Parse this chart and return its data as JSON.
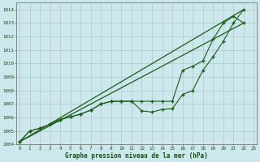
{
  "title": "Graphe pression niveau de la mer (hPa)",
  "ylim": [
    1004,
    1014.5
  ],
  "yticks": [
    1004,
    1005,
    1006,
    1007,
    1008,
    1009,
    1010,
    1011,
    1012,
    1013,
    1014
  ],
  "bg_color": "#cce8ec",
  "grid_color": "#b0c8cc",
  "line_color": "#1a5c1a",
  "xlim": [
    -0.3,
    23.3
  ],
  "series1_x": [
    0,
    22
  ],
  "series1_y": [
    1004.2,
    1014.0
  ],
  "series2_x": [
    0,
    22
  ],
  "series2_y": [
    1004.2,
    1013.0
  ],
  "series3_x": [
    0,
    1,
    2,
    3,
    4,
    5,
    6,
    7,
    8,
    9,
    10,
    11,
    12,
    13,
    14,
    15,
    16,
    17,
    18,
    19,
    20,
    21,
    22
  ],
  "series3_y": [
    1004.2,
    1005.0,
    1005.2,
    1005.5,
    1005.85,
    1006.05,
    1006.25,
    1006.55,
    1007.0,
    1007.2,
    1007.2,
    1007.2,
    1006.5,
    1006.4,
    1006.6,
    1006.65,
    1007.7,
    1008.0,
    1009.5,
    1010.5,
    1011.65,
    1013.0,
    1014.0
  ],
  "series4_x": [
    0,
    1,
    2,
    3,
    4,
    5,
    6,
    7,
    8,
    9,
    10,
    11,
    12,
    13,
    14,
    15,
    16,
    17,
    18,
    19,
    20,
    21,
    22
  ],
  "series4_y": [
    1004.2,
    1005.0,
    1005.2,
    1005.5,
    1005.85,
    1006.05,
    1006.25,
    1006.55,
    1007.0,
    1007.2,
    1007.2,
    1007.2,
    1007.2,
    1007.2,
    1007.2,
    1007.2,
    1009.5,
    1009.8,
    1010.2,
    1011.8,
    1013.0,
    1013.5,
    1013.0
  ]
}
